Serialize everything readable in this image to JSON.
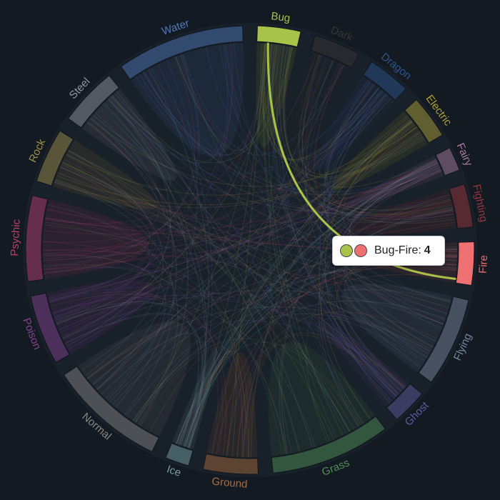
{
  "chart_data": {
    "type": "chord",
    "title": "",
    "groups": [
      {
        "name": "Bug",
        "color": "#a8c24a"
      },
      {
        "name": "Dark",
        "color": "#3f3a3a"
      },
      {
        "name": "Dragon",
        "color": "#2f5f9e"
      },
      {
        "name": "Electric",
        "color": "#c9b83e"
      },
      {
        "name": "Fairy",
        "color": "#c48bb7"
      },
      {
        "name": "Fighting",
        "color": "#b03a42"
      },
      {
        "name": "Fire",
        "color": "#ee7070"
      },
      {
        "name": "Flying",
        "color": "#8a9ab5"
      },
      {
        "name": "Ghost",
        "color": "#6b67b4"
      },
      {
        "name": "Grass",
        "color": "#5ca561"
      },
      {
        "name": "Ground",
        "color": "#c07a45"
      },
      {
        "name": "Ice",
        "color": "#86bcbc"
      },
      {
        "name": "Normal",
        "color": "#9a9a9a"
      },
      {
        "name": "Poison",
        "color": "#9a4aa8"
      },
      {
        "name": "Psychic",
        "color": "#d2477e"
      },
      {
        "name": "Rock",
        "color": "#b6a452"
      },
      {
        "name": "Steel",
        "color": "#a7adb5"
      },
      {
        "name": "Water",
        "color": "#5a8ad6"
      }
    ],
    "highlight": {
      "source": "Bug",
      "target": "Fire",
      "value": 4
    }
  },
  "tooltip": {
    "pair": "Bug-Fire:",
    "value": "4",
    "color_a": "#a8c24a",
    "color_b": "#ee7070"
  }
}
